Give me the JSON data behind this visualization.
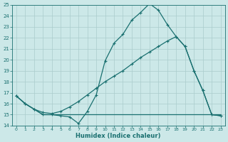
{
  "xlabel": "Humidex (Indice chaleur)",
  "ylabel": "",
  "xlim": [
    -0.5,
    23.5
  ],
  "ylim": [
    14,
    25
  ],
  "yticks": [
    14,
    15,
    16,
    17,
    18,
    19,
    20,
    21,
    22,
    23,
    24,
    25
  ],
  "xticks": [
    0,
    1,
    2,
    3,
    4,
    5,
    6,
    7,
    8,
    9,
    10,
    11,
    12,
    13,
    14,
    15,
    16,
    17,
    18,
    19,
    20,
    21,
    22,
    23
  ],
  "bg_color": "#cce8e8",
  "grid_color": "#aacccc",
  "line_color": "#1a7070",
  "line1_x": [
    0,
    1,
    2,
    3,
    4,
    5,
    6,
    7,
    8,
    9,
    10,
    11,
    12,
    13,
    14,
    15,
    16,
    17,
    18,
    19,
    20,
    21,
    22,
    23
  ],
  "line1_y": [
    16.7,
    16.0,
    15.5,
    15.0,
    15.0,
    14.9,
    14.8,
    14.2,
    15.3,
    16.8,
    19.9,
    21.5,
    22.3,
    23.6,
    24.3,
    25.1,
    24.5,
    23.2,
    22.1,
    21.2,
    19.0,
    17.2,
    15.0,
    14.9
  ],
  "line2_x": [
    0,
    1,
    2,
    3,
    4,
    5,
    6,
    7,
    8,
    9,
    10,
    11,
    12,
    13,
    14,
    15,
    16,
    17,
    18,
    19,
    20,
    21,
    22,
    23
  ],
  "line2_y": [
    16.7,
    16.0,
    15.5,
    15.2,
    15.1,
    15.3,
    15.7,
    16.2,
    16.8,
    17.4,
    18.0,
    18.5,
    19.0,
    19.6,
    20.2,
    20.7,
    21.2,
    21.7,
    22.1,
    21.2,
    19.0,
    17.2,
    15.0,
    14.9
  ],
  "line3_x": [
    0,
    1,
    2,
    3,
    4,
    5,
    6,
    7,
    8,
    9,
    10,
    11,
    12,
    13,
    14,
    15,
    16,
    17,
    18,
    19,
    20,
    21,
    22,
    23
  ],
  "line3_y": [
    16.7,
    16.0,
    15.5,
    15.0,
    15.0,
    15.0,
    15.0,
    15.0,
    15.0,
    15.0,
    15.0,
    15.0,
    15.0,
    15.0,
    15.0,
    15.0,
    15.0,
    15.0,
    15.0,
    15.0,
    15.0,
    15.0,
    15.0,
    15.0
  ]
}
